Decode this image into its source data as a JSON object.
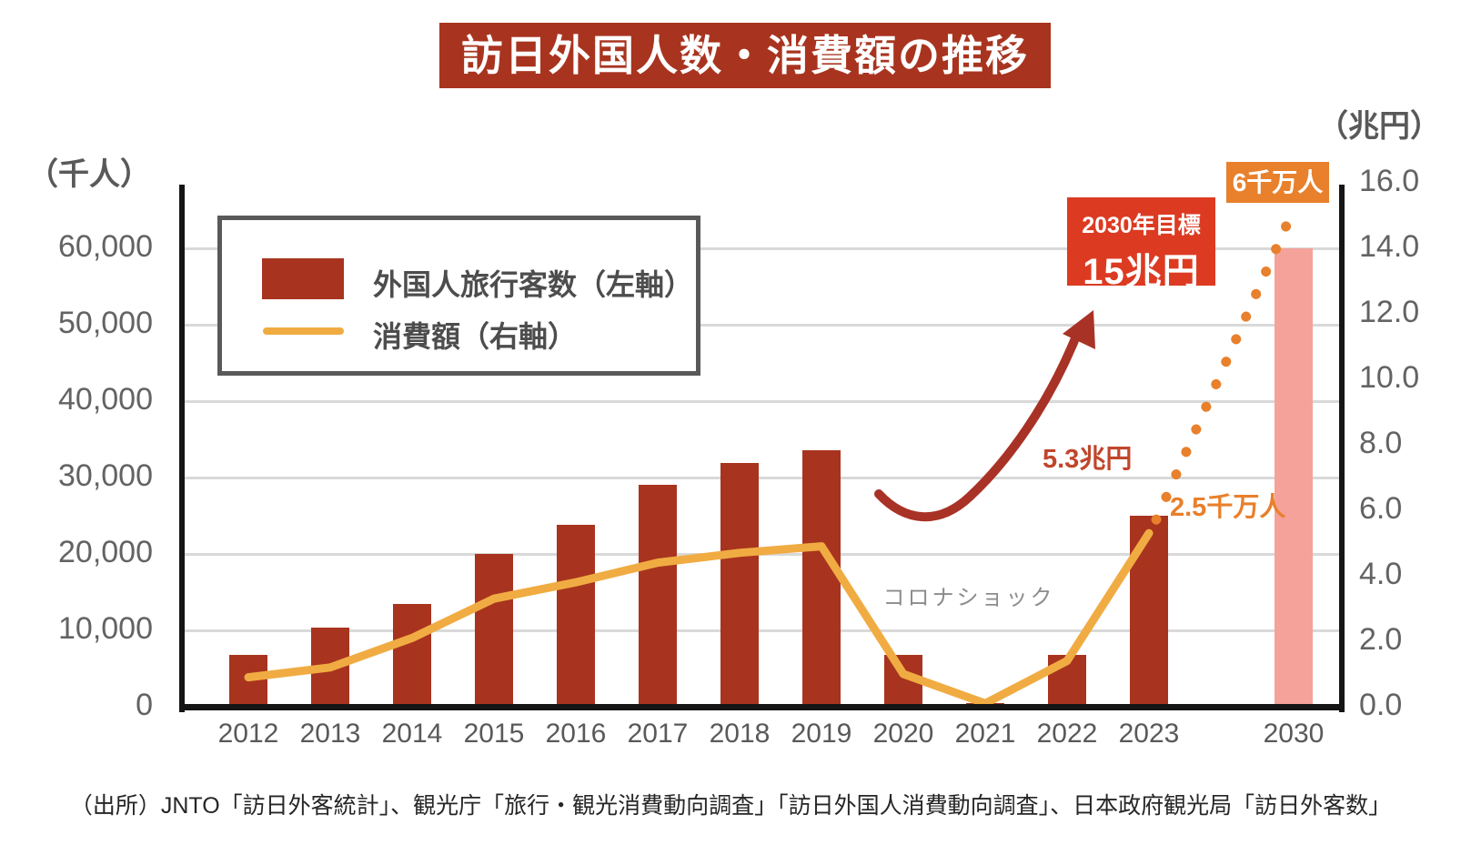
{
  "title": "訪日外国人数・消費額の推移",
  "left_axis": {
    "unit_label": "（千人）",
    "ticks": [
      {
        "label": "60,000",
        "value": 60000
      },
      {
        "label": "50,000",
        "value": 50000
      },
      {
        "label": "40,000",
        "value": 40000
      },
      {
        "label": "30,000",
        "value": 30000
      },
      {
        "label": "20,000",
        "value": 20000
      },
      {
        "label": "10,000",
        "value": 10000
      },
      {
        "label": "0",
        "value": 0
      }
    ]
  },
  "right_axis": {
    "unit_label": "（兆円）",
    "ticks": [
      {
        "label": "16.0",
        "value": 16
      },
      {
        "label": "14.0",
        "value": 14
      },
      {
        "label": "12.0",
        "value": 12
      },
      {
        "label": "10.0",
        "value": 10
      },
      {
        "label": "8.0",
        "value": 8
      },
      {
        "label": "6.0",
        "value": 6
      },
      {
        "label": "4.0",
        "value": 4
      },
      {
        "label": "2.0",
        "value": 2
      },
      {
        "label": "0.0",
        "value": 0
      }
    ]
  },
  "legend": {
    "bar_label": "外国人旅行客数（左軸）",
    "line_label": "消費額（右軸）"
  },
  "annotations": {
    "covid_shock": "コロナショック",
    "consumption_2023": "5.3兆円",
    "visitors_2023": "2.5千万人",
    "target_2030_title": "2030年目標",
    "target_2030_value": "15兆円",
    "visitors_2030": "6千万人"
  },
  "source": "（出所）JNTO「訪日外客統計」、観光庁「旅行・観光消費動向調査」「訪日外国人消費動向調査」、日本政府観光局「訪日外客数」",
  "colors": {
    "bar_red": "#a8341f",
    "bar_pink_2030": "#f4a29a",
    "line_orange": "#f0ac42",
    "projection_orange": "#e8802c",
    "target_box_red": "#dc3b22",
    "arrow_dark_red": "#a93226",
    "gridline_gray": "#d9d9d9",
    "text_gray": "#595959"
  },
  "chart_data": {
    "type": "bar",
    "subtype": "dual-axis bar + line combo",
    "categories": [
      "2012",
      "2013",
      "2014",
      "2015",
      "2016",
      "2017",
      "2018",
      "2019",
      "2020",
      "2021",
      "2022",
      "2023",
      "2030"
    ],
    "series": [
      {
        "name": "外国人旅行客数（左軸）",
        "type": "bar",
        "axis": "left",
        "unit": "千人",
        "values": [
          6800,
          10300,
          13400,
          20000,
          23800,
          29000,
          31900,
          33600,
          6800,
          500,
          6800,
          25000,
          60000
        ],
        "note_2030": "2030 bar is the 6千万人 (60 million) target, drawn in pink"
      },
      {
        "name": "消費額（右軸）",
        "type": "line",
        "axis": "right",
        "unit": "兆円",
        "values": [
          0.9,
          1.2,
          2.1,
          3.3,
          3.8,
          4.4,
          4.7,
          4.9,
          1.0,
          0.1,
          1.4,
          5.3,
          null
        ]
      }
    ],
    "projection": {
      "style": "dotted",
      "from_year": "2023",
      "from_value": 5.3,
      "to_year": "2030",
      "to_value": 15.0,
      "meaning": "consumption target path to 2030年目標 15兆円"
    },
    "left_ylim": [
      0,
      60000
    ],
    "right_ylim": [
      0,
      16
    ],
    "grid": "horizontal lines every 10,000 (left axis)",
    "legend_position": "top-left inside plot",
    "title": "訪日外国人数・消費額の推移",
    "xlabel": "",
    "ylabel_left": "千人",
    "ylabel_right": "兆円"
  }
}
